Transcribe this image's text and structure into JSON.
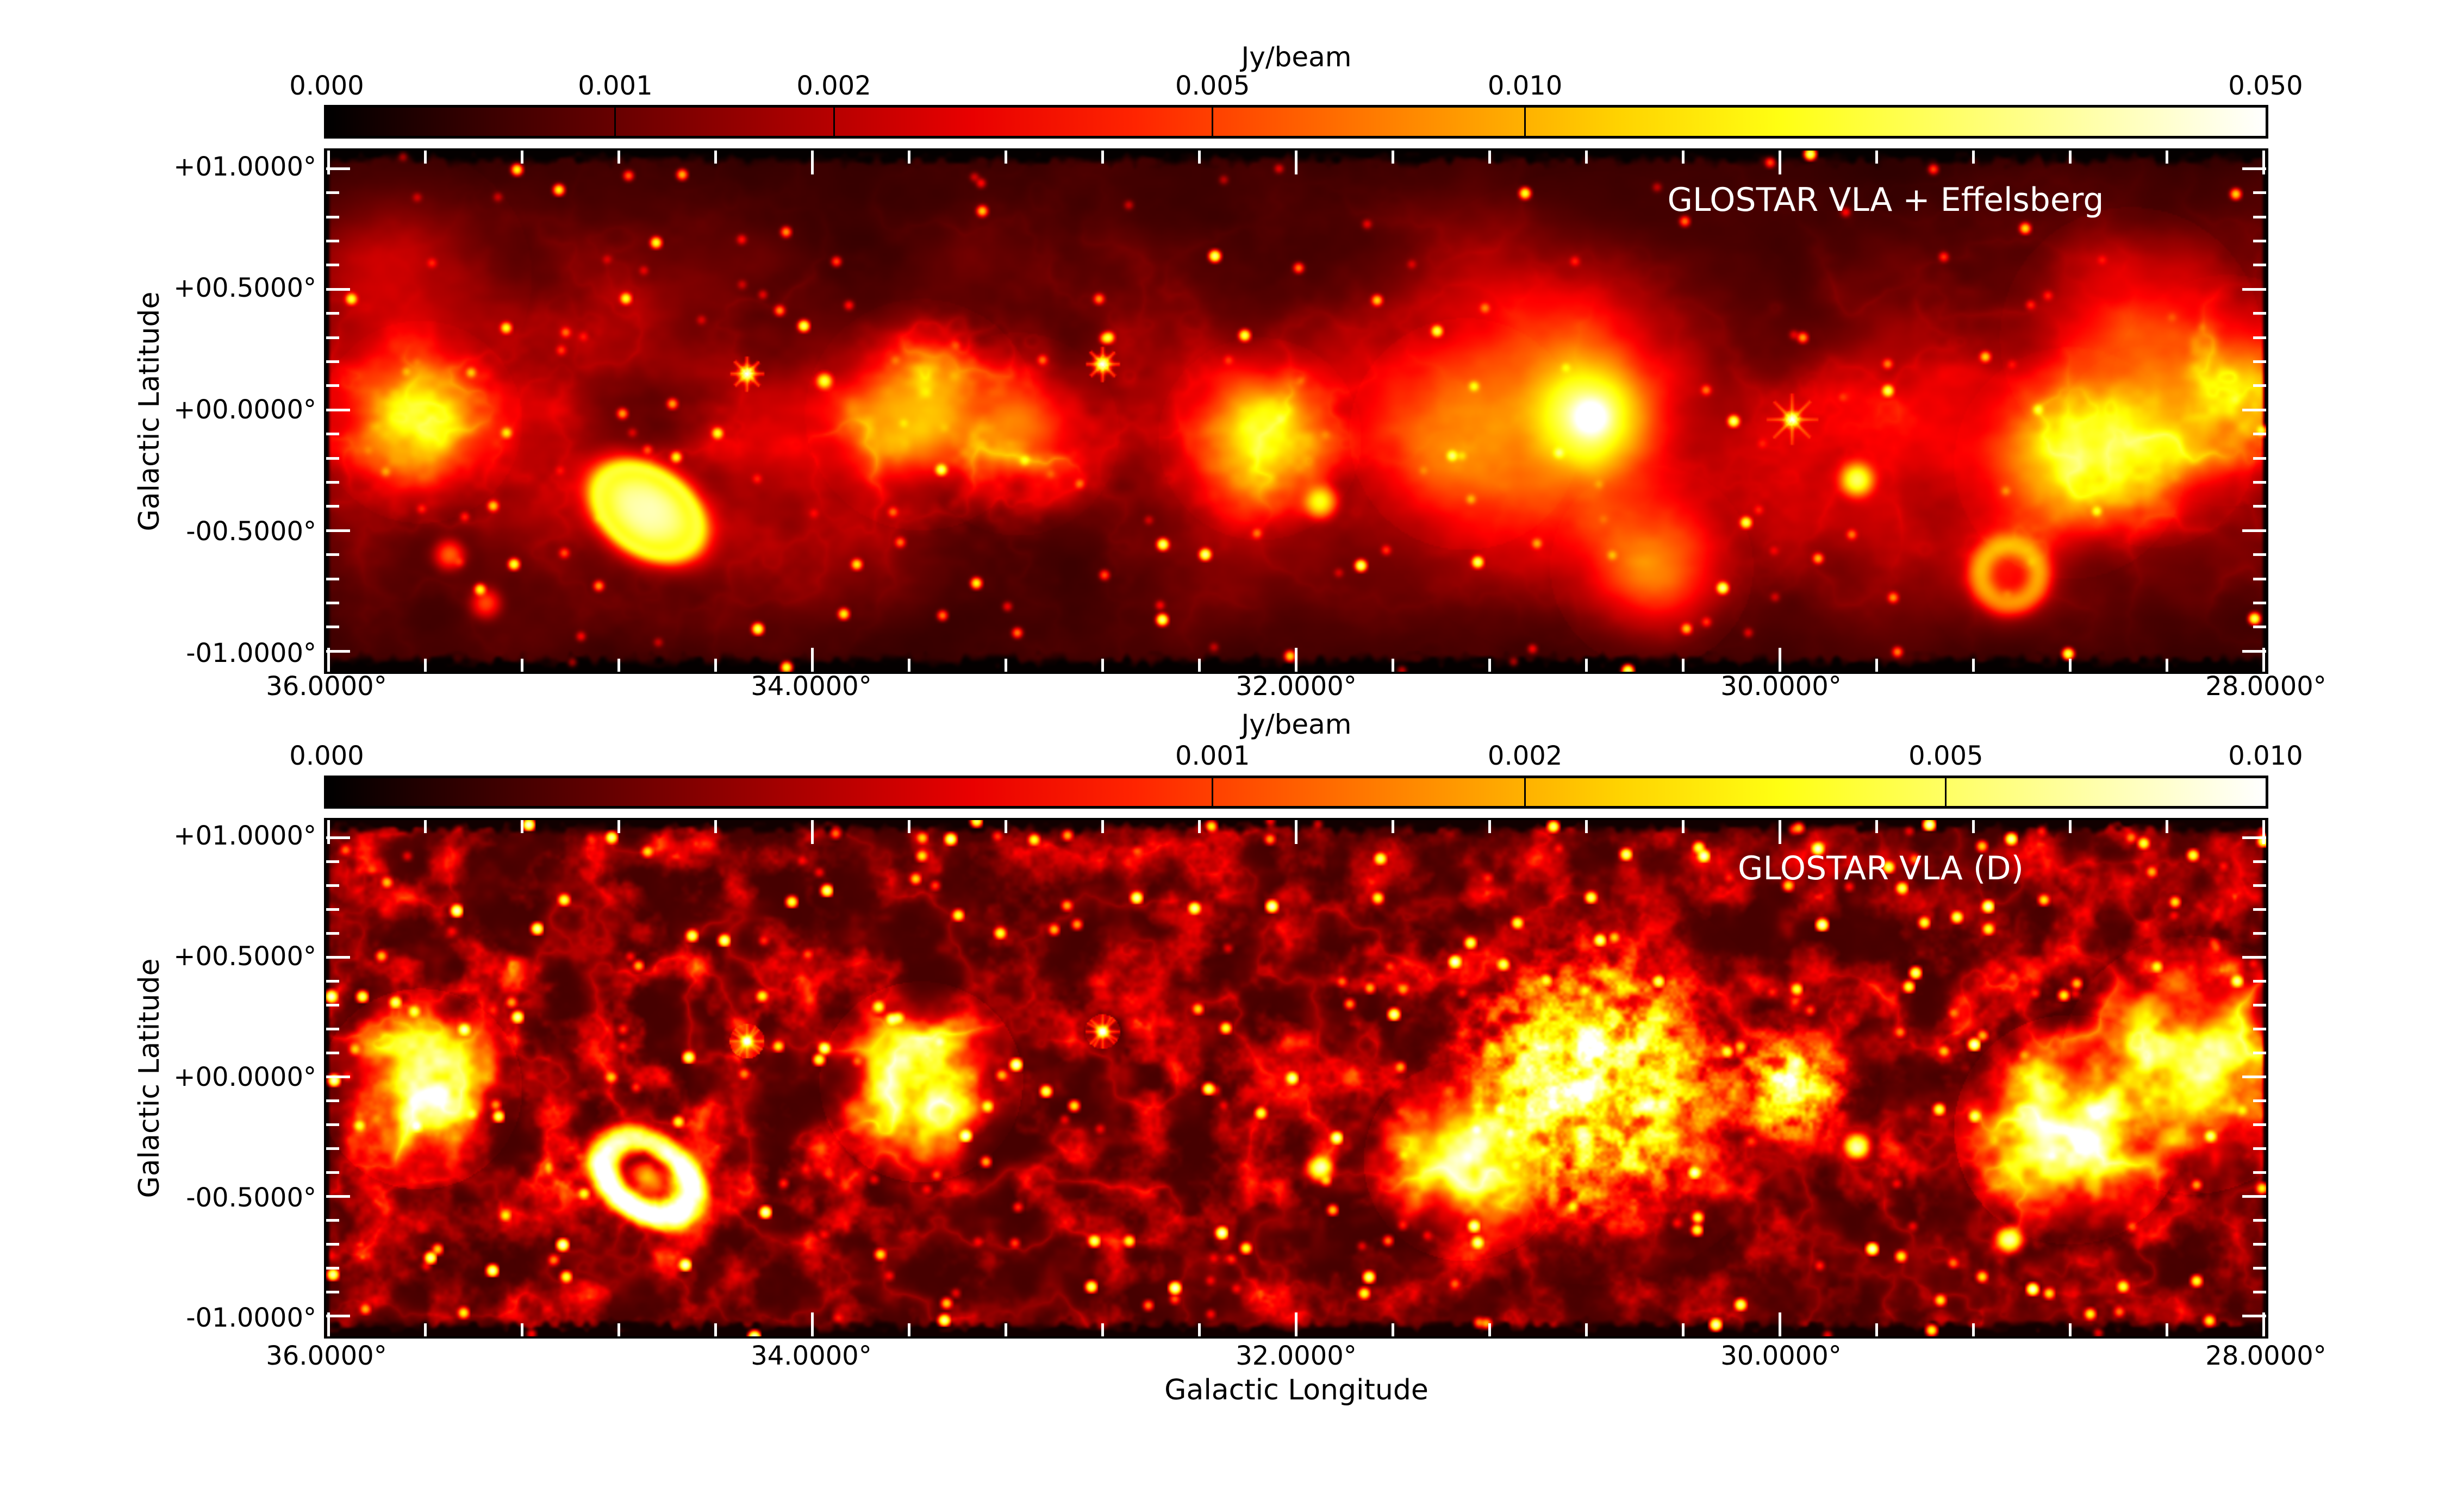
{
  "figure": {
    "colors": {
      "background": "#ffffff",
      "frame": "#000000",
      "axis_tick": "#ffffff",
      "text": "#000000",
      "panel_label_text": "#ffffff"
    }
  },
  "chart_data": [
    {
      "type": "heatmap",
      "title": "GLOSTAR VLA + Effelsberg",
      "xlabel": "",
      "ylabel": "Galactic Latitude",
      "colormap": "hot",
      "grid": false,
      "colorbar": {
        "unit": "Jy/beam",
        "vmin": 0.0,
        "vmax": 0.05,
        "stretch": "asinh",
        "asinh_softening": 0.0015,
        "ticks": [
          0.0,
          0.001,
          0.002,
          0.005,
          0.01,
          0.05
        ],
        "tick_labels": [
          "0.000",
          "0.001",
          "0.002",
          "0.005",
          "0.010",
          "0.050"
        ],
        "position": "top"
      },
      "axes": {
        "xlim": [
          36.01,
          27.99
        ],
        "ylim": [
          -1.085,
          1.075
        ],
        "xticks": [
          36,
          34,
          32,
          30,
          28
        ],
        "xtick_labels": [
          "36.0000°",
          "34.0000°",
          "32.0000°",
          "30.0000°",
          "28.0000°"
        ],
        "yticks": [
          1.0,
          0.5,
          0.0,
          -0.5,
          -1.0
        ],
        "ytick_labels": [
          "+01.0000°",
          "+00.5000°",
          "+00.0000°",
          "-00.5000°",
          "-01.0000°"
        ],
        "x_minor_step": 0.4,
        "y_minor_step": 0.1
      },
      "bright_features": [
        {
          "l": 35.7,
          "b": 0.55,
          "type": "diffuse",
          "size_deg": 0.45,
          "peak_jy_beam": 0.003
        },
        {
          "l": 35.62,
          "b": -0.05,
          "type": "complex",
          "size_deg": 0.35,
          "peak_jy_beam": 0.013
        },
        {
          "l": 35.5,
          "b": -0.6,
          "type": "compact",
          "size_deg": 0.18,
          "peak_jy_beam": 0.006
        },
        {
          "l": 35.35,
          "b": -0.8,
          "type": "compact",
          "size_deg": 0.12,
          "peak_jy_beam": 0.005
        },
        {
          "l": 34.68,
          "b": -0.42,
          "type": "bright-shell",
          "size_deg": 0.55,
          "peak_jy_beam": 0.035
        },
        {
          "l": 34.27,
          "b": 0.15,
          "type": "point-artifact",
          "size_deg": 0.06,
          "peak_jy_beam": 0.05
        },
        {
          "l": 33.95,
          "b": 0.12,
          "type": "point",
          "size_deg": 0.04,
          "peak_jy_beam": 0.02
        },
        {
          "l": 33.55,
          "b": -0.02,
          "type": "complex",
          "size_deg": 0.4,
          "peak_jy_beam": 0.015
        },
        {
          "l": 33.15,
          "b": -0.1,
          "type": "complex",
          "size_deg": 0.35,
          "peak_jy_beam": 0.01
        },
        {
          "l": 32.8,
          "b": 0.19,
          "type": "point-artifact",
          "size_deg": 0.06,
          "peak_jy_beam": 0.05
        },
        {
          "l": 32.15,
          "b": -0.12,
          "type": "complex",
          "size_deg": 0.35,
          "peak_jy_beam": 0.012
        },
        {
          "l": 31.9,
          "b": -0.38,
          "type": "compact",
          "size_deg": 0.15,
          "peak_jy_beam": 0.014
        },
        {
          "l": 31.3,
          "b": -0.1,
          "type": "diffuse",
          "size_deg": 0.4,
          "peak_jy_beam": 0.008
        },
        {
          "l": 30.78,
          "b": -0.03,
          "type": "giant-complex",
          "size_deg": 0.85,
          "peak_jy_beam": 0.05
        },
        {
          "l": 30.53,
          "b": -0.65,
          "type": "diffuse",
          "size_deg": 0.35,
          "peak_jy_beam": 0.006
        },
        {
          "l": 29.95,
          "b": -0.04,
          "type": "point-artifact",
          "size_deg": 0.09,
          "peak_jy_beam": 0.05
        },
        {
          "l": 29.68,
          "b": -0.29,
          "type": "compact",
          "size_deg": 0.12,
          "peak_jy_beam": 0.02
        },
        {
          "l": 29.05,
          "b": -0.68,
          "type": "shell",
          "size_deg": 0.3,
          "peak_jy_beam": 0.01
        },
        {
          "l": 28.8,
          "b": -0.22,
          "type": "complex",
          "size_deg": 0.4,
          "peak_jy_beam": 0.015
        },
        {
          "l": 28.45,
          "b": -0.15,
          "type": "complex",
          "size_deg": 0.35,
          "peak_jy_beam": 0.012
        },
        {
          "l": 28.55,
          "b": 0.3,
          "type": "diffuse",
          "size_deg": 0.45,
          "peak_jy_beam": 0.007
        },
        {
          "l": 28.15,
          "b": 0.08,
          "type": "complex",
          "size_deg": 0.4,
          "peak_jy_beam": 0.01
        }
      ]
    },
    {
      "type": "heatmap",
      "title": "GLOSTAR VLA (D)",
      "xlabel": "Galactic Longitude",
      "ylabel": "Galactic Latitude",
      "colormap": "hot",
      "grid": false,
      "colorbar": {
        "unit": "Jy/beam",
        "vmin": 0.0,
        "vmax": 0.01,
        "stretch": "asinh",
        "asinh_softening": 0.0003,
        "ticks": [
          0.0,
          0.001,
          0.002,
          0.005,
          0.01
        ],
        "tick_labels": [
          "0.000",
          "0.001",
          "0.002",
          "0.005",
          "0.010"
        ],
        "position": "top"
      },
      "axes": {
        "xlim": [
          36.01,
          27.99
        ],
        "ylim": [
          -1.085,
          1.075
        ],
        "xticks": [
          36,
          34,
          32,
          30,
          28
        ],
        "xtick_labels": [
          "36.0000°",
          "34.0000°",
          "32.0000°",
          "30.0000°",
          "28.0000°"
        ],
        "yticks": [
          1.0,
          0.5,
          0.0,
          -0.5,
          -1.0
        ],
        "ytick_labels": [
          "+01.0000°",
          "+00.5000°",
          "+00.0000°",
          "-00.5000°",
          "-01.0000°"
        ],
        "x_minor_step": 0.4,
        "y_minor_step": 0.1
      },
      "bright_features": [
        {
          "l": 35.62,
          "b": -0.05,
          "type": "arcs",
          "size_deg": 0.35,
          "peak_jy_beam": 0.006
        },
        {
          "l": 34.68,
          "b": -0.42,
          "type": "filament-shell",
          "size_deg": 0.55,
          "peak_jy_beam": 0.008
        },
        {
          "l": 34.27,
          "b": 0.15,
          "type": "point-artifact",
          "size_deg": 0.06,
          "peak_jy_beam": 0.01
        },
        {
          "l": 33.95,
          "b": 0.12,
          "type": "point",
          "size_deg": 0.04,
          "peak_jy_beam": 0.007
        },
        {
          "l": 33.55,
          "b": -0.02,
          "type": "arcs",
          "size_deg": 0.35,
          "peak_jy_beam": 0.006
        },
        {
          "l": 32.8,
          "b": 0.19,
          "type": "point-artifact",
          "size_deg": 0.06,
          "peak_jy_beam": 0.01
        },
        {
          "l": 31.9,
          "b": -0.38,
          "type": "compact",
          "size_deg": 0.12,
          "peak_jy_beam": 0.007
        },
        {
          "l": 31.3,
          "b": -0.35,
          "type": "arcs",
          "size_deg": 0.35,
          "peak_jy_beam": 0.005
        },
        {
          "l": 30.78,
          "b": -0.03,
          "type": "speckle-cluster",
          "size_deg": 0.7,
          "peak_jy_beam": 0.01
        },
        {
          "l": 29.95,
          "b": -0.04,
          "type": "speckle-cluster",
          "size_deg": 0.3,
          "peak_jy_beam": 0.01
        },
        {
          "l": 29.68,
          "b": -0.29,
          "type": "compact",
          "size_deg": 0.1,
          "peak_jy_beam": 0.008
        },
        {
          "l": 29.05,
          "b": -0.68,
          "type": "compact",
          "size_deg": 0.14,
          "peak_jy_beam": 0.007
        },
        {
          "l": 28.8,
          "b": -0.22,
          "type": "arcs",
          "size_deg": 0.4,
          "peak_jy_beam": 0.007
        },
        {
          "l": 28.3,
          "b": 0.05,
          "type": "arcs",
          "size_deg": 0.45,
          "peak_jy_beam": 0.006
        }
      ]
    }
  ]
}
